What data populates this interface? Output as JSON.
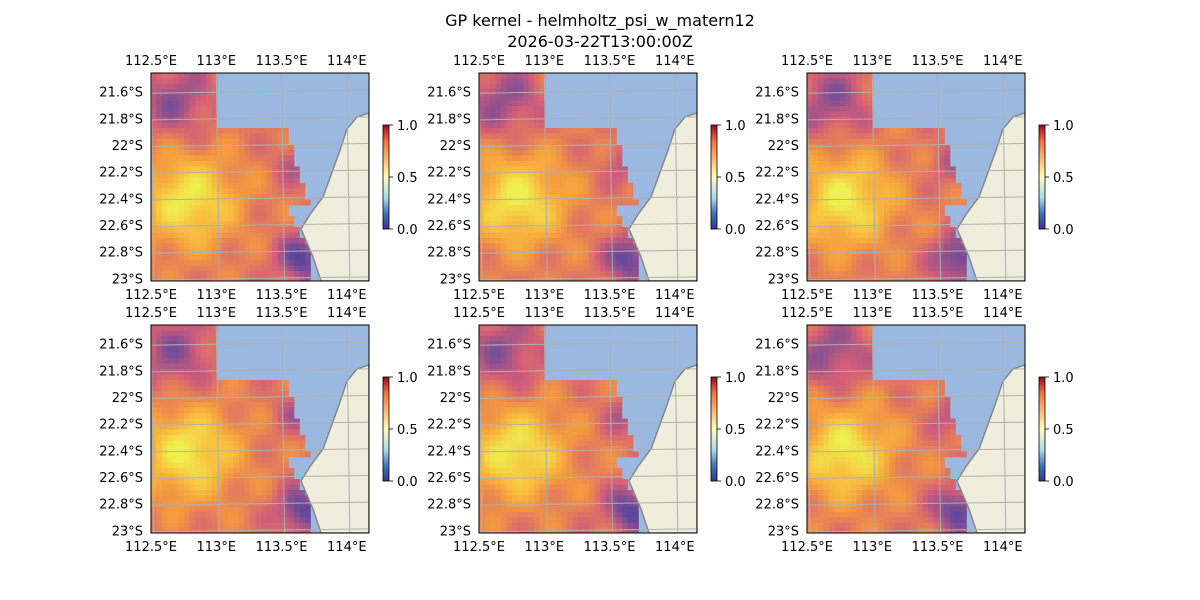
{
  "chart_data": {
    "type": "heatmap",
    "title": "GP kernel - helmholtz_psi_w_matern12",
    "subtitle": "2026-03-22T13:00:00Z",
    "layout": "2x3 grid of map panels",
    "lon_ticks": [
      "112.5°E",
      "113°E",
      "113.5°E",
      "114°E"
    ],
    "lat_ticks": [
      "21.6°S",
      "21.8°S",
      "22°S",
      "22.2°S",
      "22.4°S",
      "22.6°S",
      "22.8°S",
      "23°S"
    ],
    "lon_tick_values": [
      112.5,
      113.0,
      113.5,
      114.0
    ],
    "lat_tick_values": [
      -21.6,
      -21.8,
      -22.0,
      -22.2,
      -22.4,
      -22.6,
      -22.8,
      -23.0
    ],
    "xlim": [
      112.5,
      114.17
    ],
    "ylim": [
      -23.02,
      -21.46
    ],
    "colorbar": {
      "ticks": [
        "0.0",
        "0.5",
        "1.0"
      ],
      "range": [
        0.0,
        1.0
      ],
      "colormap": "RdYlBu_r"
    },
    "grid": true,
    "colors": {
      "ocean": "#9bb8e0",
      "land": "#efeedd",
      "coast": "#888888",
      "grid": "#b0b0b0"
    },
    "panels": [
      {
        "id": "top-left"
      },
      {
        "id": "top-middle"
      },
      {
        "id": "top-right"
      },
      {
        "id": "bottom-left"
      },
      {
        "id": "bottom-middle"
      },
      {
        "id": "bottom-right"
      }
    ]
  }
}
